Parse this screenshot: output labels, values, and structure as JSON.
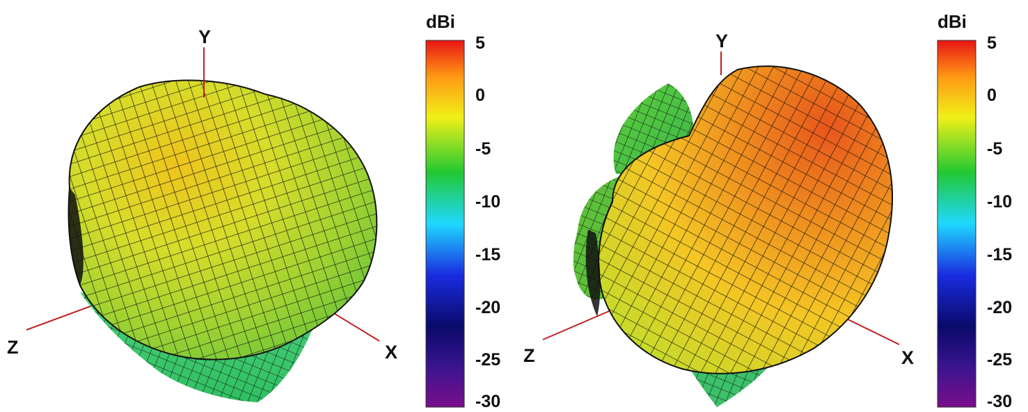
{
  "panels": [
    {
      "axes": {
        "x": "X",
        "y": "Y",
        "z": "Z"
      },
      "colorbar": {
        "unit": "dBi",
        "ticks": [
          "5",
          "0",
          "-5",
          "-10",
          "-15",
          "-20",
          "-25",
          "-30"
        ]
      }
    },
    {
      "axes": {
        "x": "X",
        "y": "Y",
        "z": "Z"
      },
      "colorbar": {
        "unit": "dBi",
        "ticks": [
          "5",
          "0",
          "-5",
          "-10",
          "-15",
          "-20",
          "-25",
          "-30"
        ]
      }
    }
  ],
  "colormap": [
    "#7a0e8c",
    "#3a148e",
    "#0a0a6a",
    "#1a2ce0",
    "#20d8ff",
    "#22c832",
    "#f0f018",
    "#ff9a14",
    "#e81414"
  ]
}
